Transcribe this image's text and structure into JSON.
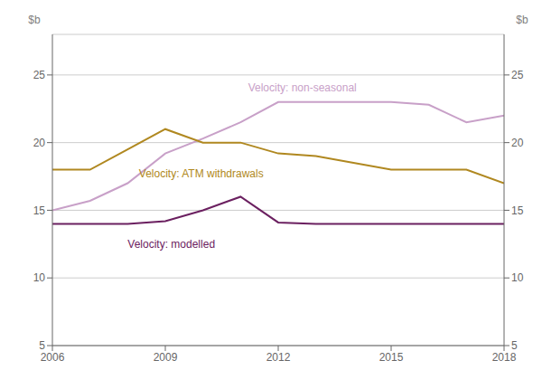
{
  "chart_data": {
    "type": "line",
    "x": [
      2006,
      2007,
      2008,
      2009,
      2010,
      2011,
      2012,
      2013,
      2014,
      2015,
      2016,
      2017,
      2018
    ],
    "series": [
      {
        "name": "Velocity: non-seasonal",
        "color": "#c8a0c8",
        "values": [
          15.0,
          15.7,
          17.0,
          19.2,
          20.3,
          21.5,
          23.0,
          23.0,
          23.0,
          23.0,
          22.8,
          21.5,
          22.0
        ],
        "label_x": 2011.2,
        "label_y": 23.6
      },
      {
        "name": "Velocity: ATM withdrawals",
        "color": "#b08820",
        "values": [
          18.0,
          18.0,
          19.5,
          21.0,
          20.0,
          20.0,
          19.2,
          19.0,
          18.5,
          18.0,
          18.0,
          18.0,
          17.0
        ],
        "label_x": 2008.3,
        "label_y": 18.0
      },
      {
        "name": "Velocity: modelled",
        "color": "#6b2060",
        "values": [
          14.0,
          14.0,
          14.0,
          14.2,
          15.0,
          16.0,
          14.1,
          14.0,
          14.0,
          14.0,
          14.0,
          14.0,
          14.0
        ],
        "label_x": 2008.0,
        "label_y": 12.8
      }
    ],
    "ylabel": "$b",
    "y2label": "$b",
    "xlim": [
      2006,
      2018
    ],
    "xticks": [
      2006,
      2009,
      2012,
      2015,
      2018
    ],
    "ylim": [
      5,
      28
    ],
    "yticks": [
      5,
      10,
      15,
      20,
      25
    ],
    "y2lim": [
      5,
      28
    ],
    "y2ticks": [
      5,
      10,
      15,
      20,
      25
    ],
    "grid": true
  }
}
